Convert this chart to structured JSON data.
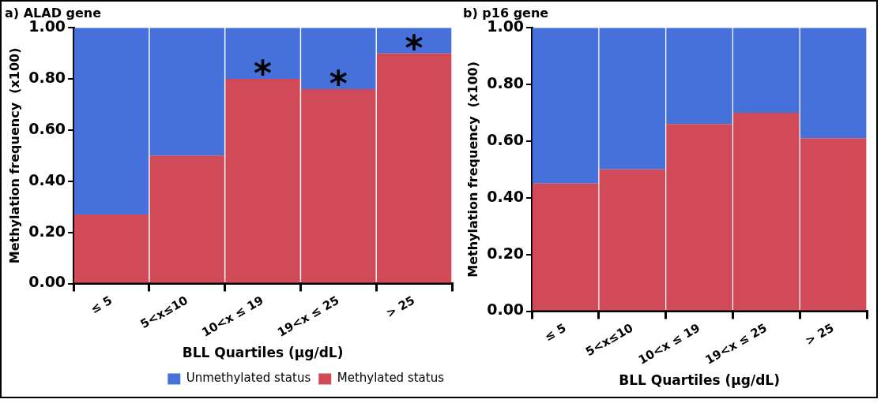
{
  "chart_data": [
    {
      "type": "bar",
      "title": "a) ALAD gene",
      "xlabel": "BLL Quartiles (μg/dL)",
      "ylabel": "Methylation frequency  (x100)",
      "categories": [
        "≤ 5",
        "5<x≤10",
        "10<x ≤ 19",
        "19<x ≤ 25",
        "> 25"
      ],
      "series": [
        {
          "name": "Methylated status",
          "color": "#d04a58",
          "values": [
            0.27,
            0.5,
            0.8,
            0.76,
            0.9
          ]
        },
        {
          "name": "Unmethylated status",
          "color": "#4671db",
          "values": [
            0.73,
            0.5,
            0.2,
            0.24,
            0.1
          ]
        }
      ],
      "stacked": true,
      "ylim": [
        0,
        1
      ],
      "yticks": [
        {
          "value": 0,
          "label": "0.00"
        },
        {
          "value": 0.2,
          "label": "0.20"
        },
        {
          "value": 0.4,
          "label": "0.40"
        },
        {
          "value": 0.6,
          "label": "0.60"
        },
        {
          "value": 0.8,
          "label": "0.80"
        },
        {
          "value": 1,
          "label": "1.00"
        }
      ],
      "grid": false,
      "legend": "bottom right",
      "annotations": [
        {
          "text": "*",
          "x": "10<x ≤ 19",
          "y": 0.8
        },
        {
          "text": "*",
          "x": "19<x ≤ 25",
          "y": 0.76
        },
        {
          "text": "*",
          "x": "> 25",
          "y": 0.9
        }
      ]
    },
    {
      "type": "bar",
      "title": "b) p16 gene",
      "xlabel": "BLL Quartiles (μg/dL)",
      "ylabel": "Methylation frequency  (x100)",
      "categories": [
        "≤ 5",
        "5<x≤10",
        "10<x ≤ 19",
        "19<x ≤ 25",
        "> 25"
      ],
      "series": [
        {
          "color": "#d04a58",
          "values": [
            0.45,
            0.5,
            0.66,
            0.7,
            0.61
          ]
        },
        {
          "color": "#4671db",
          "values": [
            0.55,
            0.5,
            0.34,
            0.3,
            0.39
          ]
        }
      ],
      "stacked": true,
      "ylim": [
        0,
        1
      ],
      "yticks": [
        {
          "value": 0,
          "label": "0.00"
        },
        {
          "value": 0.2,
          "label": "0.20"
        },
        {
          "value": 0.4,
          "label": "0.40"
        },
        {
          "value": 0.6,
          "label": "0.60"
        },
        {
          "value": 0.8,
          "label": "0.80"
        },
        {
          "value": 1,
          "label": "1.00"
        }
      ],
      "grid": false,
      "legend": false
    }
  ]
}
